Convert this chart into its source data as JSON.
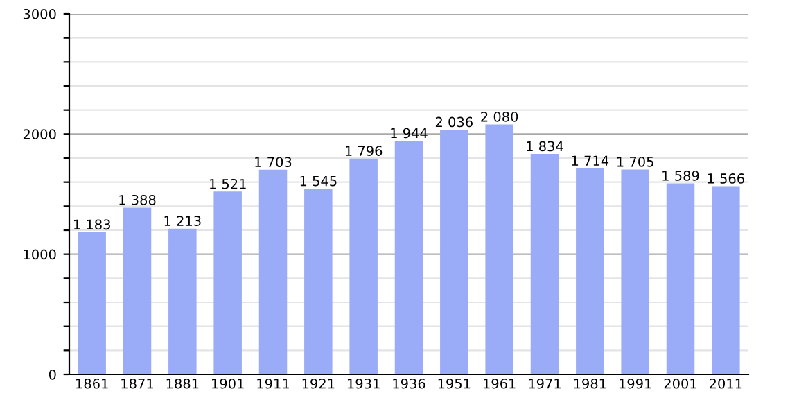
{
  "chart_data": {
    "type": "bar",
    "categories": [
      "1861",
      "1871",
      "1881",
      "1901",
      "1911",
      "1921",
      "1931",
      "1936",
      "1951",
      "1961",
      "1971",
      "1981",
      "1991",
      "2001",
      "2011"
    ],
    "values": [
      1183,
      1388,
      1213,
      1521,
      1703,
      1545,
      1796,
      1944,
      2036,
      2080,
      1834,
      1714,
      1705,
      1589,
      1566
    ],
    "value_labels": [
      "1 183",
      "1 388",
      "1 213",
      "1 521",
      "1 703",
      "1 545",
      "1 796",
      "1 944",
      "2 036",
      "2 080",
      "1 834",
      "1 714",
      "1 705",
      "1 589",
      "1 566"
    ],
    "color": "#9aacf8",
    "ylim": [
      0,
      3000
    ],
    "yticks": [
      0,
      {
        "value": 200,
        "label": null
      },
      {
        "value": 400,
        "label": null
      },
      {
        "value": 600,
        "label": null
      },
      {
        "value": 800,
        "label": null
      },
      1000,
      {
        "value": 1200,
        "label": null
      },
      {
        "value": 1400,
        "label": null
      },
      {
        "value": 1600,
        "label": null
      },
      {
        "value": 1800,
        "label": null
      },
      2000,
      {
        "value": 2200,
        "label": null
      },
      {
        "value": 2400,
        "label": null
      },
      {
        "value": 2600,
        "label": null
      },
      {
        "value": 2800,
        "label": null
      },
      3000
    ],
    "grid": "y"
  }
}
